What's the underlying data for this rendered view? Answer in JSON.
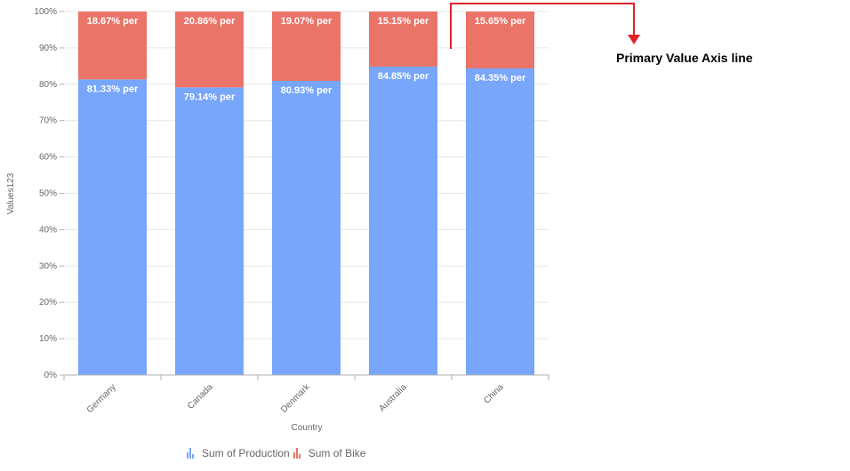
{
  "chart_data": {
    "type": "bar",
    "stacked": "percent",
    "categories": [
      "Germany",
      "Canada",
      "Denmark",
      "Australia",
      "China"
    ],
    "series": [
      {
        "name": "Sum of Production",
        "values": [
          81.33,
          79.14,
          80.93,
          84.85,
          84.35
        ],
        "labels": [
          "81.33% per",
          "79.14% per",
          "80.93% per",
          "84.85% per",
          "84.35% per"
        ],
        "color": "#77a6fb"
      },
      {
        "name": "Sum of Bike",
        "values": [
          18.67,
          20.86,
          19.07,
          15.15,
          15.65
        ],
        "labels": [
          "18.67% per",
          "20.86% per",
          "19.07% per",
          "15.15% per",
          "15.65% per"
        ],
        "color": "#ea7468"
      }
    ],
    "y_ticks": [
      "0%",
      "10%",
      "20%",
      "30%",
      "40%",
      "50%",
      "60%",
      "70%",
      "80%",
      "90%",
      "100%"
    ],
    "ylim": [
      0,
      100
    ],
    "xlabel": "Country",
    "ylabel": "Values123",
    "grid": true,
    "legend_position": "bottom-left"
  },
  "annotation": {
    "text": "Primary Value Axis line",
    "color": "#e0202a"
  }
}
